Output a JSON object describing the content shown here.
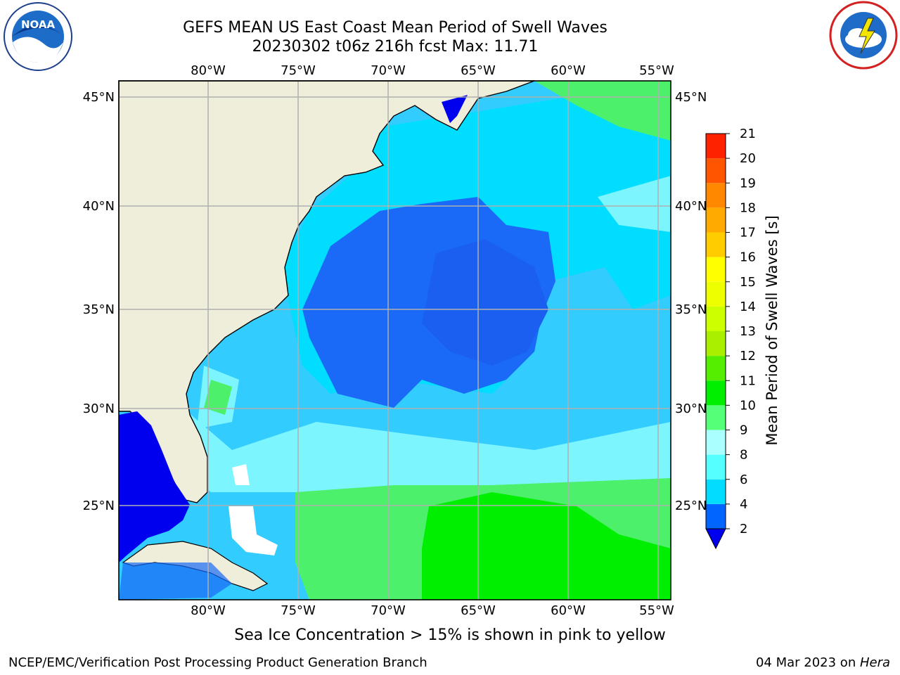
{
  "header": {
    "title_line1": "GEFS MEAN US East Coast Mean Period of Swell Waves",
    "title_line2": "20230302 t06z 216h fcst   Max: 11.71"
  },
  "logos": {
    "noaa": {
      "icon": "noaa-logo-icon",
      "text": "NOAA"
    },
    "nws": {
      "icon": "nws-logo-icon"
    }
  },
  "map": {
    "lon_labels": [
      "80°W",
      "75°W",
      "70°W",
      "65°W",
      "60°W",
      "55°W"
    ],
    "lat_labels": [
      "45°N",
      "40°N",
      "35°N",
      "30°N",
      "25°N"
    ],
    "land_color": "#efeedb",
    "grid_color": "#b0b0b0"
  },
  "colorbar": {
    "label": "Mean Period of Swell Waves [s]",
    "ticks": [
      "2",
      "4",
      "6",
      "8",
      "9",
      "10",
      "11",
      "12",
      "13",
      "14",
      "15",
      "16",
      "17",
      "18",
      "19",
      "20",
      "21"
    ],
    "colors": [
      "#0066ff",
      "#00ddff",
      "#55ffff",
      "#aaffff",
      "#55ff77",
      "#00ee00",
      "#55ee00",
      "#aaee00",
      "#ccff00",
      "#eeff00",
      "#ffff00",
      "#ffcc00",
      "#ffaa00",
      "#ff8800",
      "#ff5500",
      "#ff2200"
    ],
    "under_color": "#0000ee"
  },
  "footer": {
    "note": "Sea Ice Concentration > 15% is shown in pink to yellow",
    "left": "NCEP/EMC/Verification Post Processing Product Generation Branch",
    "date": "04 Mar 2023 on ",
    "machine": "Hera"
  }
}
